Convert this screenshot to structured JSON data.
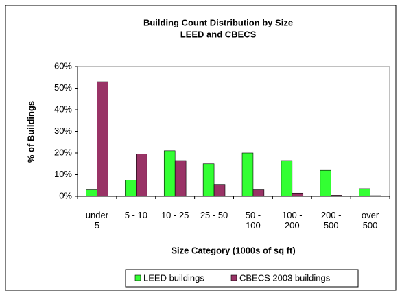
{
  "chart_data": {
    "type": "bar",
    "title": "Building Count Distribution by Size",
    "subtitle": "LEED and CBECS",
    "x_label": "Size Category (1000s of sq ft)",
    "y_label": "% of Buildings",
    "categories": [
      "under 5",
      "5 - 10",
      "10 - 25",
      "25 - 50",
      "50 - 100",
      "100 - 200",
      "200 - 500",
      "over 500"
    ],
    "series": [
      {
        "name": "LEED buildings",
        "color": "#33ff33",
        "values": [
          3,
          7.5,
          21,
          15,
          20,
          16.5,
          12,
          3.5
        ]
      },
      {
        "name": "CBECS 2003 buildings",
        "color": "#993366",
        "values": [
          53,
          19.5,
          16.5,
          5.5,
          3,
          1.5,
          0.5,
          0.3
        ]
      }
    ],
    "ylim": [
      0,
      60
    ],
    "yticks": [
      {
        "value": 0,
        "label": "0%"
      },
      {
        "value": 10,
        "label": "10%"
      },
      {
        "value": 20,
        "label": "20%"
      },
      {
        "value": 30,
        "label": "30%"
      },
      {
        "value": 40,
        "label": "40%"
      },
      {
        "value": 50,
        "label": "50%"
      },
      {
        "value": 60,
        "label": "60%"
      }
    ],
    "legend": "bottom"
  }
}
